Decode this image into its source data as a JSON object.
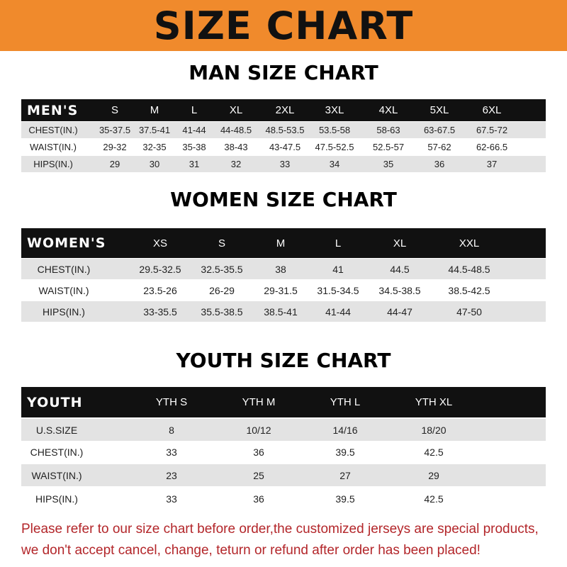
{
  "title": "SIZE CHART",
  "colors": {
    "banner": "#f08a2c",
    "note": "#b3262a",
    "header_row": "#111111",
    "stripe": "#e3e3e3"
  },
  "men": {
    "heading": "MAN SIZE CHART",
    "columns": [
      "MEN'S",
      "S",
      "M",
      "L",
      "XL",
      "2XL",
      "3XL",
      "4XL",
      "5XL",
      "6XL"
    ],
    "rows": [
      [
        "CHEST(IN.)",
        "35-37.5",
        "37.5-41",
        "41-44",
        "44-48.5",
        "48.5-53.5",
        "53.5-58",
        "58-63",
        "63-67.5",
        "67.5-72"
      ],
      [
        "WAIST(IN.)",
        "29-32",
        "32-35",
        "35-38",
        "38-43",
        "43-47.5",
        "47.5-52.5",
        "52.5-57",
        "57-62",
        "62-66.5"
      ],
      [
        "HIPS(IN.)",
        "29",
        "30",
        "31",
        "32",
        "33",
        "34",
        "35",
        "36",
        "37"
      ]
    ]
  },
  "women": {
    "heading": "WOMEN SIZE CHART",
    "columns": [
      "WOMEN'S",
      "XS",
      "S",
      "M",
      "L",
      "XL",
      "XXL"
    ],
    "rows": [
      [
        "CHEST(IN.)",
        "29.5-32.5",
        "32.5-35.5",
        "38",
        "41",
        "44.5",
        "44.5-48.5"
      ],
      [
        "WAIST(IN.)",
        "23.5-26",
        "26-29",
        "29-31.5",
        "31.5-34.5",
        "34.5-38.5",
        "38.5-42.5"
      ],
      [
        "HIPS(IN.)",
        "33-35.5",
        "35.5-38.5",
        "38.5-41",
        "41-44",
        "44-47",
        "47-50"
      ]
    ]
  },
  "youth": {
    "heading": "YOUTH SIZE CHART",
    "columns": [
      "YOUTH",
      "YTH S",
      "YTH M",
      "YTH L",
      "YTH XL"
    ],
    "rows": [
      [
        "U.S.SIZE",
        "8",
        "10/12",
        "14/16",
        "18/20"
      ],
      [
        "CHEST(IN.)",
        "33",
        "36",
        "39.5",
        "42.5"
      ],
      [
        "WAIST(IN.)",
        "23",
        "25",
        "27",
        "29"
      ],
      [
        "HIPS(IN.)",
        "33",
        "36",
        "39.5",
        "42.5"
      ]
    ]
  },
  "note": {
    "line1": "Please refer to our size chart before order,the customized jerseys are special products,",
    "line2": "we don't accept cancel, change, teturn or refund after order has been placed!"
  }
}
